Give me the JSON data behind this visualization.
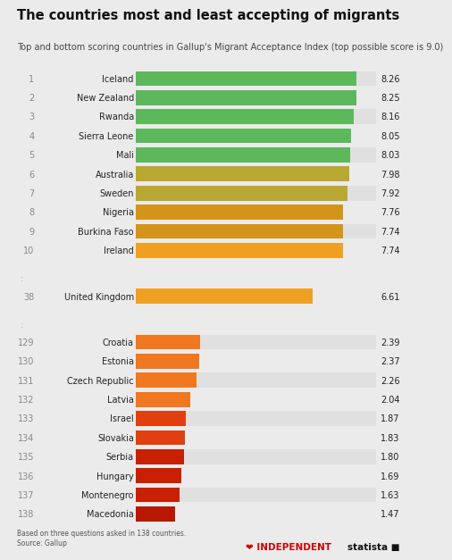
{
  "title": "The countries most and least accepting of migrants",
  "subtitle": "Top and bottom scoring countries in Gallup's Migrant Acceptance Index (top possible score is 9.0)",
  "background_color": "#ebebeb",
  "row_bg_even": "#e0e0e0",
  "row_bg_odd": "#ebebeb",
  "entries": [
    {
      "rank": "1",
      "country": "Iceland",
      "value": 8.26,
      "color": "#5db85c",
      "section": "top"
    },
    {
      "rank": "2",
      "country": "New Zealand",
      "value": 8.25,
      "color": "#5db85c",
      "section": "top"
    },
    {
      "rank": "3",
      "country": "Rwanda",
      "value": 8.16,
      "color": "#5db85c",
      "section": "top"
    },
    {
      "rank": "4",
      "country": "Sierra Leone",
      "value": 8.05,
      "color": "#5db85c",
      "section": "top"
    },
    {
      "rank": "5",
      "country": "Mali",
      "value": 8.03,
      "color": "#5db85c",
      "section": "top"
    },
    {
      "rank": "6",
      "country": "Australia",
      "value": 7.98,
      "color": "#b8a832",
      "section": "top"
    },
    {
      "rank": "7",
      "country": "Sweden",
      "value": 7.92,
      "color": "#b8a832",
      "section": "top"
    },
    {
      "rank": "8",
      "country": "Nigeria",
      "value": 7.76,
      "color": "#d4941a",
      "section": "top"
    },
    {
      "rank": "9",
      "country": "Burkina Faso",
      "value": 7.74,
      "color": "#d4941a",
      "section": "top"
    },
    {
      "rank": "10",
      "country": "Ireland",
      "value": 7.74,
      "color": "#f0a020",
      "section": "top"
    },
    {
      "rank": "38",
      "country": "United Kingdom",
      "value": 6.61,
      "color": "#f0a020",
      "section": "mid"
    },
    {
      "rank": "129",
      "country": "Croatia",
      "value": 2.39,
      "color": "#f07820",
      "section": "bot"
    },
    {
      "rank": "130",
      "country": "Estonia",
      "value": 2.37,
      "color": "#f07820",
      "section": "bot"
    },
    {
      "rank": "131",
      "country": "Czech Republic",
      "value": 2.26,
      "color": "#f07820",
      "section": "bot"
    },
    {
      "rank": "132",
      "country": "Latvia",
      "value": 2.04,
      "color": "#f07820",
      "section": "bot"
    },
    {
      "rank": "133",
      "country": "Israel",
      "value": 1.87,
      "color": "#e04010",
      "section": "bot"
    },
    {
      "rank": "134",
      "country": "Slovakia",
      "value": 1.83,
      "color": "#e04010",
      "section": "bot"
    },
    {
      "rank": "135",
      "country": "Serbia",
      "value": 1.8,
      "color": "#c82000",
      "section": "bot"
    },
    {
      "rank": "136",
      "country": "Hungary",
      "value": 1.69,
      "color": "#c82000",
      "section": "bot"
    },
    {
      "rank": "137",
      "country": "Montenegro",
      "value": 1.63,
      "color": "#c82000",
      "section": "bot"
    },
    {
      "rank": "138",
      "country": "Macedonia",
      "value": 1.47,
      "color": "#b81800",
      "section": "bot"
    }
  ],
  "max_value": 9.0,
  "footer_left": "Based on three questions asked in 138 countries.\nSource: Gallup",
  "title_fontsize": 10.5,
  "subtitle_fontsize": 7.0,
  "rank_fontsize": 7.0,
  "country_fontsize": 7.0,
  "value_fontsize": 7.0
}
